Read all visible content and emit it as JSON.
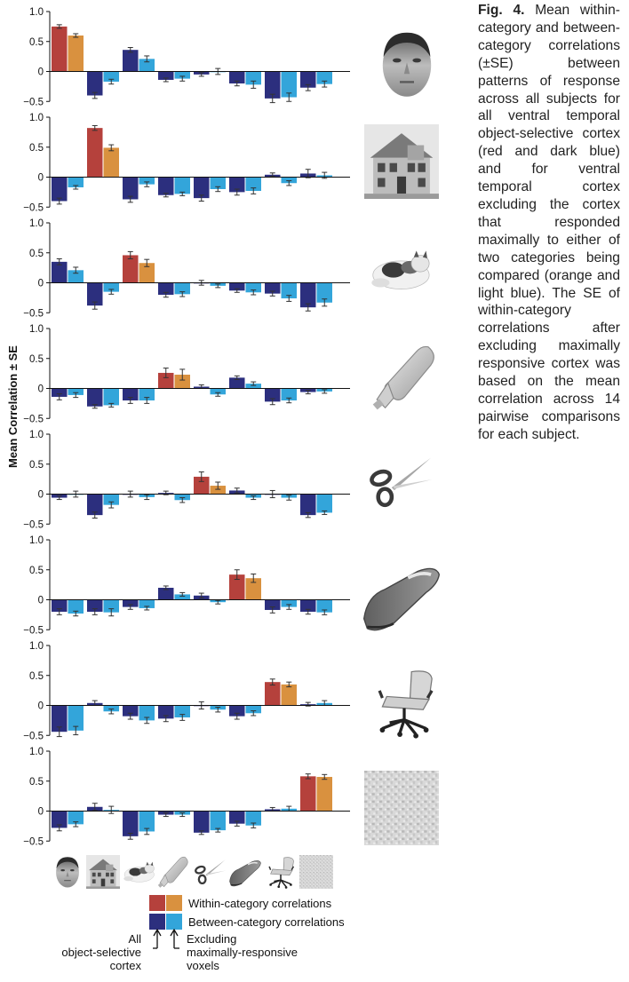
{
  "caption": {
    "label": "Fig. 4.",
    "text": "Mean within-category and between-category correlations (±SE) between patterns of response across all subjects for all ventral temporal object-selective cortex (red and dark blue) and for ventral temporal cortex excluding the cortex that responded maximally to either of two categories being compared (orange and light blue). The SE of within-category correlations after excluding maximally responsive cortex was based on the mean correlation across 14 pairwise comparisons for each subject."
  },
  "colors": {
    "within_all": "#b5413c",
    "within_excl": "#d9913f",
    "between_all": "#2c2f7e",
    "between_excl": "#33a5da",
    "axis": "#111111"
  },
  "chart_data": {
    "type": "bar",
    "ylabel": "Mean Correlation ± SE",
    "ylim": [
      -0.5,
      1.0
    ],
    "yticks": [
      "1.0",
      "0.5",
      "0",
      "−0.5"
    ],
    "row_images": [
      "face",
      "house",
      "cat",
      "bottle",
      "scissors",
      "shoe",
      "chair",
      "scrambled"
    ],
    "categories": [
      "face",
      "house",
      "cat",
      "bottle",
      "scissors",
      "shoe",
      "chair",
      "scrambled"
    ],
    "panels": [
      {
        "all": [
          0.75,
          -0.4,
          0.36,
          -0.14,
          -0.05,
          -0.2,
          -0.45,
          -0.27
        ],
        "all_se": [
          0.03,
          0.05,
          0.04,
          0.03,
          0.03,
          0.04,
          0.07,
          0.05
        ],
        "excl": [
          0.6,
          -0.17,
          0.21,
          -0.12,
          0.0,
          -0.22,
          -0.43,
          -0.21
        ],
        "excl_se": [
          0.03,
          0.04,
          0.05,
          0.04,
          0.05,
          0.06,
          0.07,
          0.05
        ]
      },
      {
        "all": [
          -0.4,
          0.82,
          -0.37,
          -0.3,
          -0.35,
          -0.25,
          0.04,
          0.06
        ],
        "all_se": [
          0.05,
          0.04,
          0.05,
          0.03,
          0.05,
          0.05,
          0.03,
          0.07
        ],
        "excl": [
          -0.17,
          0.49,
          -0.12,
          -0.28,
          -0.2,
          -0.23,
          -0.1,
          0.03
        ],
        "excl_se": [
          0.03,
          0.05,
          0.04,
          0.03,
          0.04,
          0.05,
          0.04,
          0.05
        ]
      },
      {
        "all": [
          0.35,
          -0.38,
          0.46,
          -0.2,
          0.0,
          -0.13,
          -0.18,
          -0.41
        ],
        "all_se": [
          0.05,
          0.06,
          0.06,
          0.04,
          0.04,
          0.03,
          0.04,
          0.06
        ],
        "excl": [
          0.21,
          -0.15,
          0.33,
          -0.19,
          -0.05,
          -0.16,
          -0.26,
          -0.33
        ],
        "excl_se": [
          0.05,
          0.04,
          0.06,
          0.04,
          0.03,
          0.04,
          0.05,
          0.06
        ]
      },
      {
        "all": [
          -0.14,
          -0.3,
          -0.2,
          0.26,
          0.03,
          0.18,
          -0.22,
          -0.06
        ],
        "all_se": [
          0.05,
          0.03,
          0.05,
          0.08,
          0.03,
          0.03,
          0.05,
          0.03
        ],
        "excl": [
          -0.11,
          -0.28,
          -0.2,
          0.23,
          -0.1,
          0.08,
          -0.2,
          -0.05
        ],
        "excl_se": [
          0.04,
          0.03,
          0.05,
          0.09,
          0.03,
          0.03,
          0.04,
          0.03
        ]
      },
      {
        "all": [
          -0.06,
          -0.35,
          0.0,
          0.02,
          0.29,
          0.06,
          0.0,
          -0.35
        ],
        "all_se": [
          0.03,
          0.05,
          0.05,
          0.03,
          0.08,
          0.04,
          0.06,
          0.04
        ],
        "excl": [
          0.0,
          -0.18,
          -0.05,
          -0.1,
          0.14,
          -0.06,
          -0.06,
          -0.31
        ],
        "excl_se": [
          0.05,
          0.05,
          0.04,
          0.04,
          0.06,
          0.03,
          0.04,
          0.03
        ]
      },
      {
        "all": [
          -0.2,
          -0.2,
          -0.12,
          0.2,
          0.07,
          0.42,
          -0.17,
          -0.2
        ],
        "all_se": [
          0.05,
          0.05,
          0.04,
          0.03,
          0.04,
          0.08,
          0.05,
          0.04
        ],
        "excl": [
          -0.23,
          -0.21,
          -0.14,
          0.09,
          -0.04,
          0.36,
          -0.12,
          -0.21
        ],
        "excl_se": [
          0.04,
          0.06,
          0.03,
          0.03,
          0.03,
          0.07,
          0.04,
          0.04
        ]
      },
      {
        "all": [
          -0.44,
          0.04,
          -0.18,
          -0.22,
          0.0,
          -0.18,
          0.39,
          0.02
        ],
        "all_se": [
          0.08,
          0.04,
          0.05,
          0.05,
          0.06,
          0.05,
          0.05,
          0.03
        ],
        "excl": [
          -0.42,
          -0.1,
          -0.25,
          -0.2,
          -0.07,
          -0.13,
          0.35,
          0.04
        ],
        "excl_se": [
          0.07,
          0.04,
          0.05,
          0.05,
          0.04,
          0.04,
          0.04,
          0.04
        ]
      },
      {
        "all": [
          -0.28,
          0.07,
          -0.42,
          -0.06,
          -0.36,
          -0.21,
          0.03,
          0.58
        ],
        "all_se": [
          0.05,
          0.06,
          0.05,
          0.03,
          0.03,
          0.04,
          0.03,
          0.04
        ],
        "excl": [
          -0.22,
          0.02,
          -0.34,
          -0.06,
          -0.32,
          -0.24,
          0.04,
          0.57
        ],
        "excl_se": [
          0.04,
          0.06,
          0.05,
          0.03,
          0.03,
          0.04,
          0.04,
          0.04
        ]
      }
    ],
    "legend": {
      "within": "Within-category correlations",
      "between": "Between-category correlations",
      "all_label_lines": [
        "All",
        "object-selective",
        "cortex"
      ],
      "excl_label_lines": [
        "Excluding",
        "maximally-responsive",
        "voxels"
      ]
    },
    "grid": false
  }
}
